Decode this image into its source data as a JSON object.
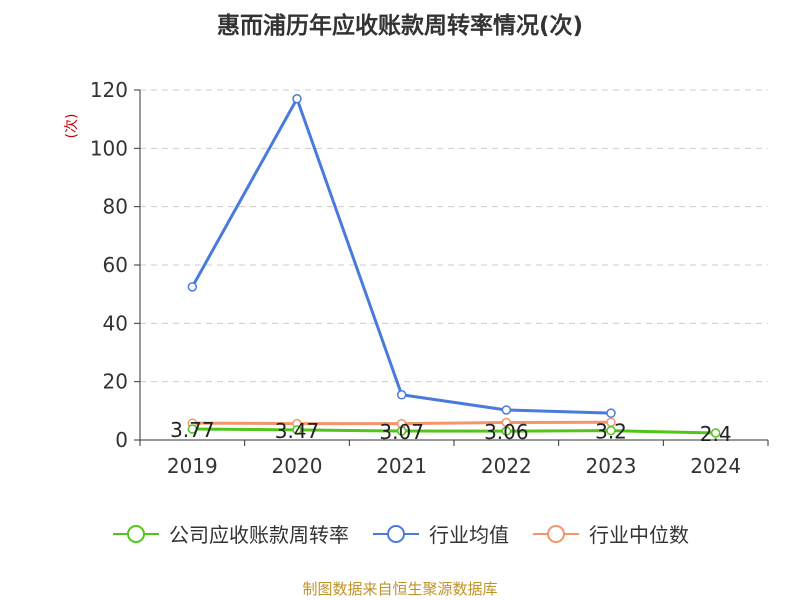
{
  "title": "惠而浦历年应收账款周转率情况(次)",
  "source": "制图数据来自恒生聚源数据库",
  "chart_data": {
    "type": "line",
    "title": "惠而浦历年应收账款周转率情况(次)",
    "ylabel": "(次)",
    "xlabel": "",
    "categories": [
      "2019",
      "2020",
      "2021",
      "2022",
      "2023",
      "2024"
    ],
    "ylim": [
      0,
      120
    ],
    "yticks": [
      0,
      20,
      40,
      60,
      80,
      100,
      120
    ],
    "grid": true,
    "legend_position": "bottom",
    "series": [
      {
        "name": "公司应收账款周转率",
        "color": "#52c41a",
        "values": [
          3.77,
          3.47,
          3.07,
          3.06,
          3.2,
          2.4
        ],
        "labels": [
          "3.77",
          "3.47",
          "3.07",
          "3.06",
          "3.2",
          "2.4"
        ]
      },
      {
        "name": "行业均值",
        "color": "#4a7bdc",
        "values": [
          52.5,
          117,
          15.5,
          10.3,
          9.2,
          null
        ]
      },
      {
        "name": "行业中位数",
        "color": "#f5956b",
        "values": [
          5.8,
          5.6,
          5.6,
          6.0,
          6.1,
          null
        ]
      }
    ]
  }
}
